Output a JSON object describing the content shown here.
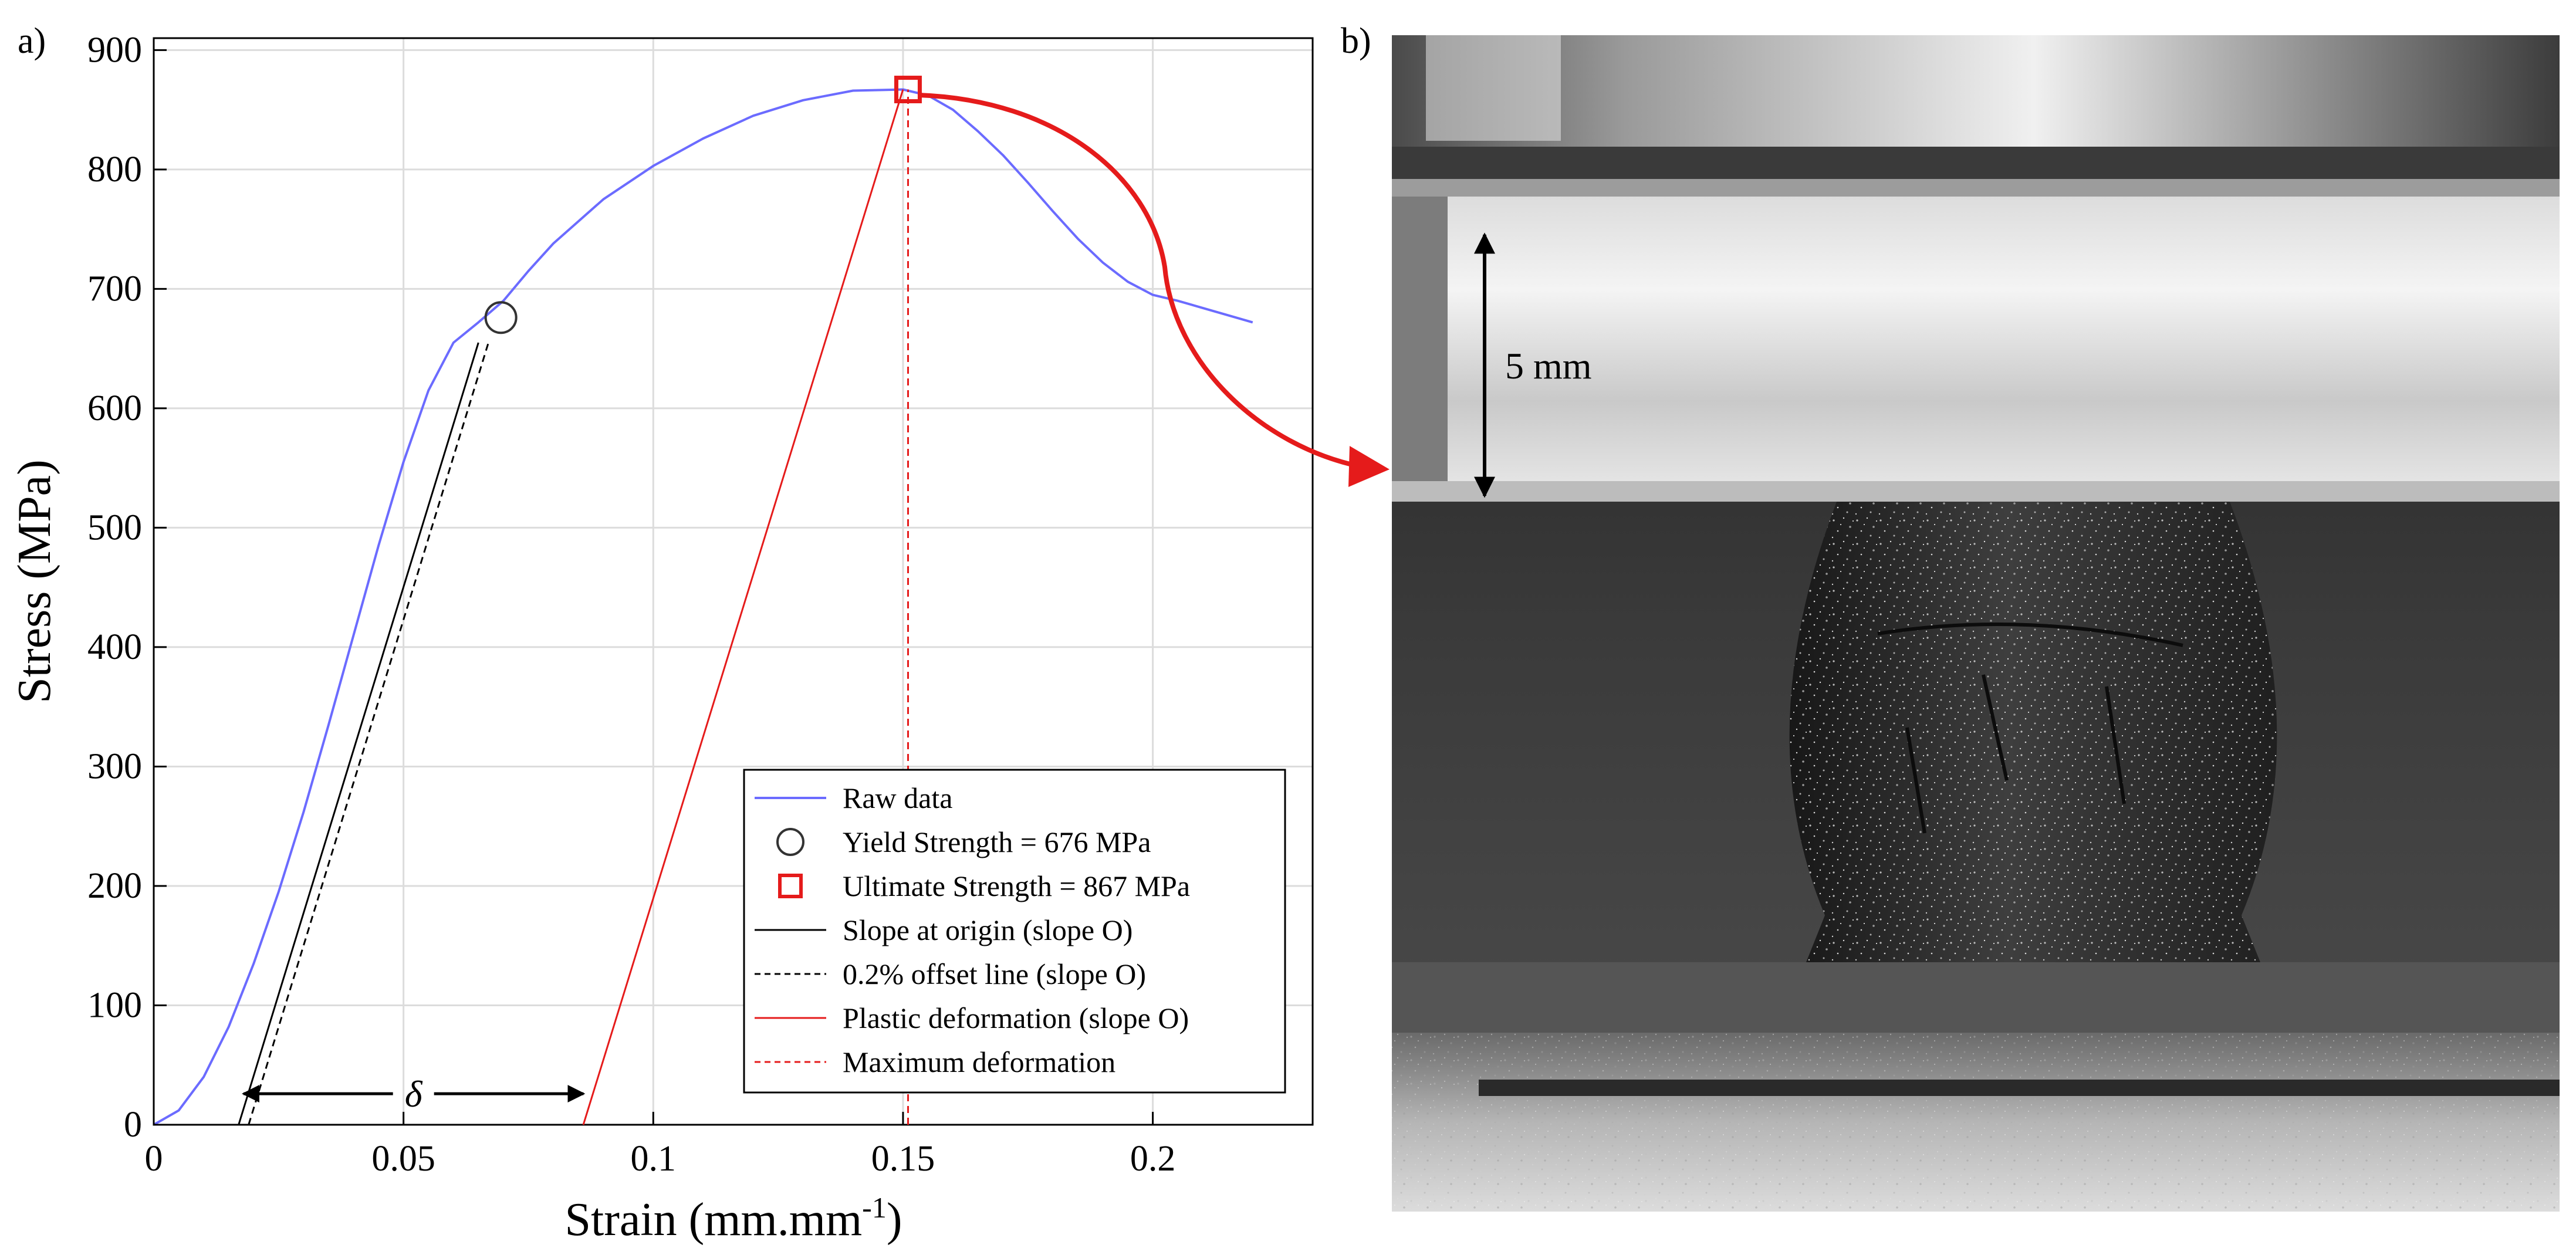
{
  "panel_a_label": "a)",
  "panel_b_label": "b)",
  "photo_annotation": "5 mm",
  "delta_label": "δ",
  "colors": {
    "raw": "#6b6bff",
    "red": "#e51b1b",
    "black": "#000000",
    "grid": "#dcdcdc"
  },
  "chart_data": {
    "type": "line",
    "title": "",
    "xlabel_main": "Strain (mm.mm",
    "xlabel_sup": "-1",
    "xlabel_end": ")",
    "ylabel": "Stress (MPa)",
    "xlim": [
      0,
      0.232
    ],
    "ylim": [
      0,
      910
    ],
    "x_ticks": [
      0,
      0.05,
      0.1,
      0.15,
      0.2
    ],
    "x_tick_labels": [
      "0",
      "0.05",
      "0.1",
      "0.15",
      "0.2"
    ],
    "y_ticks": [
      0,
      100,
      200,
      300,
      400,
      500,
      600,
      700,
      800,
      900
    ],
    "y_tick_labels": [
      "0",
      "100",
      "200",
      "300",
      "400",
      "500",
      "600",
      "700",
      "800",
      "900"
    ],
    "grid": true,
    "legend_position": "bottom-right",
    "series": [
      {
        "name": "Raw data",
        "style": "solid-blue",
        "x": [
          0,
          0.005,
          0.01,
          0.015,
          0.02,
          0.025,
          0.03,
          0.035,
          0.04,
          0.045,
          0.05,
          0.055,
          0.06,
          0.065,
          0.07,
          0.075,
          0.08,
          0.09,
          0.1,
          0.11,
          0.12,
          0.13,
          0.14,
          0.15,
          0.155,
          0.16,
          0.165,
          0.17,
          0.175,
          0.18,
          0.185,
          0.19,
          0.195,
          0.2,
          0.205,
          0.21,
          0.215,
          0.22
        ],
        "y": [
          0,
          12,
          40,
          82,
          135,
          195,
          262,
          335,
          410,
          485,
          555,
          615,
          655,
          672,
          690,
          715,
          738,
          775,
          803,
          826,
          845,
          858,
          866,
          867,
          862,
          850,
          832,
          812,
          789,
          765,
          742,
          722,
          706,
          695,
          690,
          684,
          678,
          672
        ]
      },
      {
        "name": "Slope at origin (slope O)",
        "style": "solid-black",
        "x": [
          0.017,
          0.065
        ],
        "y": [
          0,
          655
        ]
      },
      {
        "name": "0.2% offset line (slope O)",
        "style": "dashed-black",
        "x": [
          0.019,
          0.067
        ],
        "y": [
          0,
          655
        ]
      },
      {
        "name": "Plastic deformation (slope O)",
        "style": "solid-red",
        "x": [
          0.086,
          0.15
        ],
        "y": [
          0,
          867
        ]
      },
      {
        "name": "Maximum deformation",
        "style": "dashed-red",
        "x": [
          0.151,
          0.151
        ],
        "y": [
          0,
          867
        ]
      }
    ],
    "markers": [
      {
        "name": "Yield Strength = 676 MPa",
        "shape": "circle",
        "x": 0.0695,
        "y": 676
      },
      {
        "name": "Ultimate Strength = 867 MPa",
        "shape": "square",
        "x": 0.151,
        "y": 867
      }
    ],
    "legend": [
      {
        "label": "Raw data",
        "glyph": "line-blue"
      },
      {
        "label": "Yield Strength = 676 MPa",
        "glyph": "circle"
      },
      {
        "label": "Ultimate Strength = 867 MPa",
        "glyph": "square-red"
      },
      {
        "label": "Slope at origin (slope O)",
        "glyph": "line-black"
      },
      {
        "label": "0.2% offset line (slope O)",
        "glyph": "dashed-black"
      },
      {
        "label": "Plastic deformation (slope O)",
        "glyph": "line-red"
      },
      {
        "label": "Maximum deformation",
        "glyph": "dashed-red"
      }
    ],
    "delta_span": {
      "x_start": 0.0175,
      "x_end": 0.0865,
      "y": 26
    }
  }
}
